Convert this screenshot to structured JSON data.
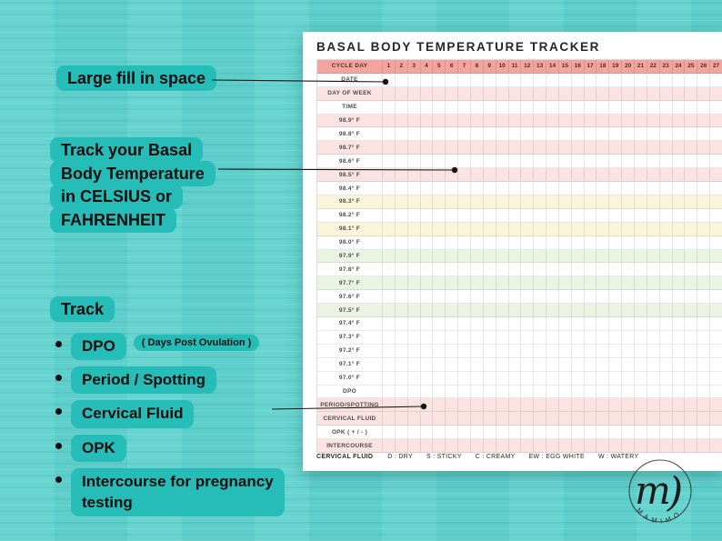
{
  "colors": {
    "background": "#5fd2ce",
    "highlight": "#26bdb8",
    "header_band": "#f2a49d",
    "pink": "#fbe3e1",
    "cream": "#fcf4da",
    "mint": "#e9f4e3",
    "connector": "#141414"
  },
  "annotations": {
    "large_fill": "Large fill in space",
    "track_temp": "Track your Basal\nBody Temperature\nin CELSIUS or\nFAHRENHEIT",
    "track_list": {
      "title": "Track",
      "bullets": [
        {
          "main": "DPO",
          "note": "( Days Post Ovulation )"
        },
        {
          "main": "Period / Spotting",
          "note": ""
        },
        {
          "main": "Cervical Fluid",
          "note": ""
        },
        {
          "main": "OPK",
          "note": ""
        },
        {
          "main": "Intercourse for pregnancy\ntesting",
          "note": ""
        }
      ]
    }
  },
  "tracker": {
    "title": "BASAL BODY TEMPERATURE TRACKER",
    "header_label": "CYCLE DAY",
    "cycle_days": [
      1,
      2,
      3,
      4,
      5,
      6,
      7,
      8,
      9,
      10,
      11,
      12,
      13,
      14,
      15,
      16,
      17,
      18,
      19,
      20,
      21,
      22,
      23,
      24,
      25,
      26,
      27
    ],
    "rows": [
      {
        "label": "DATE",
        "band": "white"
      },
      {
        "label": "DAY OF WEEK",
        "band": "pink"
      },
      {
        "label": "TIME",
        "band": "white"
      },
      {
        "label": "98.9° F",
        "band": "pink"
      },
      {
        "label": "98.8° F",
        "band": "white"
      },
      {
        "label": "98.7° F",
        "band": "pink"
      },
      {
        "label": "98.6° F",
        "band": "white"
      },
      {
        "label": "98.5° F",
        "band": "pink"
      },
      {
        "label": "98.4° F",
        "band": "white"
      },
      {
        "label": "98.3° F",
        "band": "cream"
      },
      {
        "label": "98.2° F",
        "band": "white"
      },
      {
        "label": "98.1° F",
        "band": "cream"
      },
      {
        "label": "98.0° F",
        "band": "white"
      },
      {
        "label": "97.9° F",
        "band": "mint"
      },
      {
        "label": "97.8° F",
        "band": "white"
      },
      {
        "label": "97.7° F",
        "band": "mint"
      },
      {
        "label": "97.6° F",
        "band": "white"
      },
      {
        "label": "97.5° F",
        "band": "mint"
      },
      {
        "label": "97.4° F",
        "band": "white"
      },
      {
        "label": "97.3° F",
        "band": "white"
      },
      {
        "label": "97.2° F",
        "band": "white"
      },
      {
        "label": "97.1° F",
        "band": "white"
      },
      {
        "label": "97.0° F",
        "band": "white"
      },
      {
        "label": "DPO",
        "band": "white"
      },
      {
        "label": "PERIOD/SPOTTING",
        "band": "pink"
      },
      {
        "label": "CERVICAL FLUID",
        "band": "pink"
      },
      {
        "label": "OPK ( + / - )",
        "band": "white"
      },
      {
        "label": "INTERCOURSE",
        "band": "pink"
      }
    ],
    "legend": {
      "title": "CERVICAL FLUID",
      "items": [
        "D : DRY",
        "S : STICKY",
        "C : CREAMY",
        "EW : EGG WHITE",
        "W : WATERY"
      ]
    }
  },
  "logo": {
    "initial": "m",
    "flourish": ")",
    "name": "MAMIMO"
  }
}
